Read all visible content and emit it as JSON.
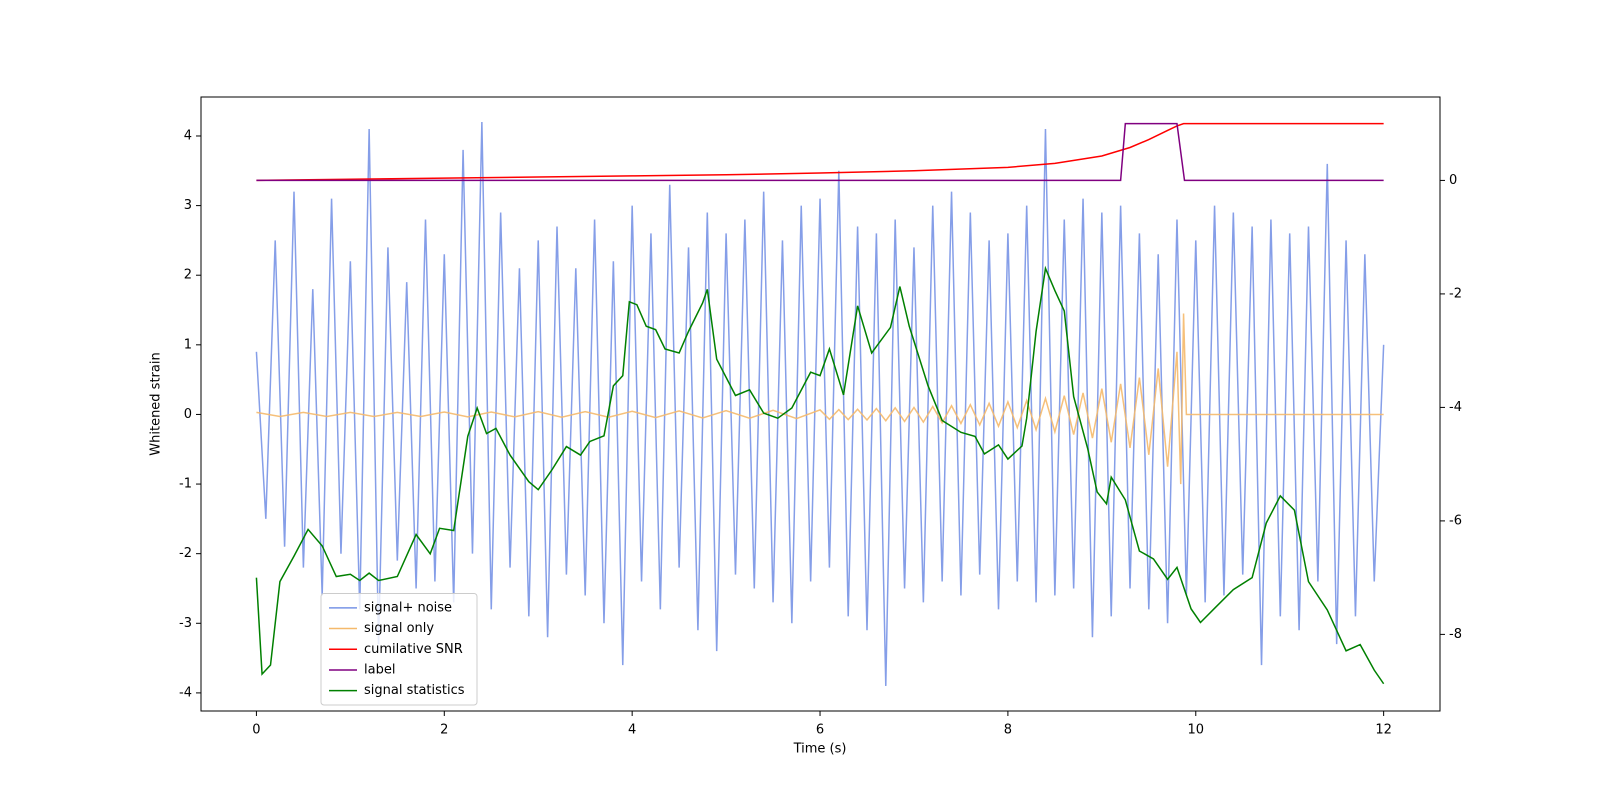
{
  "chart_data": {
    "type": "line",
    "xlabel": "Time (s)",
    "ylabel": "Whitened strain",
    "xlim": [
      -0.59,
      12.6
    ],
    "ylim": [
      -4.26,
      4.56
    ],
    "y2lim": [
      -9.35,
      1.47
    ],
    "xticks": [
      0,
      2,
      4,
      6,
      8,
      10,
      12
    ],
    "yticks": [
      -4,
      -3,
      -2,
      -1,
      0,
      1,
      2,
      3,
      4
    ],
    "y2ticks": [
      -8,
      -6,
      -4,
      -2,
      0
    ],
    "legend": "lower left",
    "series": [
      {
        "name": "signal+ noise",
        "color": "#7894e6",
        "axis": "y",
        "x": [
          0,
          0.1,
          0.2,
          0.3,
          0.4,
          0.5,
          0.6,
          0.7,
          0.8,
          0.9,
          1,
          1.1,
          1.2,
          1.3,
          1.4,
          1.5,
          1.6,
          1.7,
          1.8,
          1.9,
          2,
          2.1,
          2.2,
          2.3,
          2.4,
          2.5,
          2.6,
          2.7,
          2.8,
          2.9,
          3,
          3.1,
          3.2,
          3.3,
          3.4,
          3.5,
          3.6,
          3.7,
          3.8,
          3.9,
          4,
          4.1,
          4.2,
          4.3,
          4.4,
          4.5,
          4.6,
          4.7,
          4.8,
          4.9,
          5,
          5.1,
          5.2,
          5.3,
          5.4,
          5.5,
          5.6,
          5.7,
          5.8,
          5.9,
          6,
          6.1,
          6.2,
          6.3,
          6.4,
          6.5,
          6.6,
          6.7,
          6.8,
          6.9,
          7,
          7.1,
          7.2,
          7.3,
          7.4,
          7.5,
          7.6,
          7.7,
          7.8,
          7.9,
          8,
          8.1,
          8.2,
          8.3,
          8.4,
          8.5,
          8.6,
          8.7,
          8.8,
          8.9,
          9,
          9.1,
          9.2,
          9.3,
          9.4,
          9.5,
          9.6,
          9.7,
          9.8,
          9.9,
          10,
          10.1,
          10.2,
          10.3,
          10.4,
          10.5,
          10.6,
          10.7,
          10.8,
          10.9,
          11,
          11.1,
          11.2,
          11.3,
          11.4,
          11.5,
          11.6,
          11.7,
          11.8,
          11.9,
          12
        ],
        "values": [
          0.9,
          -1.5,
          2.5,
          -1.9,
          3.2,
          -2.2,
          1.8,
          -2.6,
          3.1,
          -2.0,
          2.2,
          -2.8,
          4.1,
          -3.3,
          2.4,
          -2.1,
          1.9,
          -2.5,
          2.8,
          -2.4,
          2.3,
          -2.7,
          3.8,
          -2.0,
          4.2,
          -2.8,
          2.9,
          -2.2,
          2.1,
          -2.9,
          2.5,
          -3.2,
          2.7,
          -2.3,
          2.1,
          -2.6,
          2.8,
          -3.0,
          2.2,
          -3.6,
          3.0,
          -2.4,
          2.6,
          -2.8,
          3.3,
          -2.2,
          2.4,
          -3.1,
          2.9,
          -3.4,
          2.6,
          -2.3,
          2.8,
          -2.5,
          3.2,
          -2.7,
          2.5,
          -3.0,
          3.0,
          -2.4,
          3.1,
          -2.2,
          3.5,
          -2.9,
          2.7,
          -3.1,
          2.6,
          -3.9,
          2.8,
          -2.5,
          2.4,
          -2.7,
          3.0,
          -2.4,
          3.2,
          -2.6,
          2.9,
          -2.3,
          2.5,
          -2.8,
          2.6,
          -2.4,
          3.0,
          -2.7,
          4.1,
          -2.6,
          2.8,
          -2.5,
          3.1,
          -3.2,
          2.9,
          -2.9,
          3.0,
          -2.5,
          2.6,
          -2.8,
          2.3,
          -3.0,
          2.8,
          -2.6,
          2.5,
          -2.7,
          3.0,
          -2.6,
          2.9,
          -2.3,
          2.7,
          -3.6,
          2.8,
          -2.9,
          2.6,
          -3.1,
          2.7,
          -2.4,
          3.6,
          -3.3,
          2.5,
          -2.9,
          2.3,
          -2.4,
          1.0
        ]
      },
      {
        "name": "signal only",
        "color": "#f5b96b",
        "axis": "y",
        "x": [
          0,
          0.25,
          0.5,
          0.75,
          1,
          1.25,
          1.5,
          1.75,
          2,
          2.25,
          2.5,
          2.75,
          3,
          3.25,
          3.5,
          3.75,
          4,
          4.25,
          4.5,
          4.75,
          5,
          5.25,
          5.5,
          5.75,
          6,
          6.1,
          6.2,
          6.3,
          6.4,
          6.5,
          6.6,
          6.7,
          6.8,
          6.9,
          7,
          7.1,
          7.2,
          7.3,
          7.4,
          7.5,
          7.6,
          7.7,
          7.8,
          7.9,
          8,
          8.1,
          8.2,
          8.3,
          8.4,
          8.5,
          8.6,
          8.7,
          8.8,
          8.9,
          9,
          9.1,
          9.2,
          9.3,
          9.4,
          9.5,
          9.6,
          9.7,
          9.8,
          9.84,
          9.87,
          9.9,
          12
        ],
        "values": [
          0.03,
          -0.03,
          0.03,
          -0.03,
          0.03,
          -0.03,
          0.03,
          -0.03,
          0.035,
          -0.035,
          0.035,
          -0.035,
          0.04,
          -0.04,
          0.04,
          -0.04,
          0.045,
          -0.045,
          0.05,
          -0.05,
          0.055,
          -0.055,
          0.06,
          -0.06,
          0.065,
          -0.07,
          0.07,
          -0.075,
          0.075,
          -0.08,
          0.085,
          -0.09,
          0.095,
          -0.1,
          0.1,
          -0.11,
          0.115,
          -0.12,
          0.125,
          -0.13,
          0.14,
          -0.15,
          0.16,
          -0.17,
          0.18,
          -0.19,
          0.2,
          -0.22,
          0.23,
          -0.25,
          0.27,
          -0.29,
          0.31,
          -0.34,
          0.37,
          -0.4,
          0.44,
          -0.48,
          0.53,
          -0.58,
          0.66,
          -0.75,
          0.9,
          -1.0,
          1.45,
          0,
          0
        ]
      },
      {
        "name": "cumilative SNR",
        "color": "#ff0000",
        "axis": "y2",
        "x": [
          0,
          1,
          2,
          3,
          4,
          5,
          6,
          7,
          8,
          8.5,
          9,
          9.3,
          9.5,
          9.7,
          9.8,
          9.87,
          10,
          12
        ],
        "values": [
          0,
          0.02,
          0.04,
          0.06,
          0.08,
          0.1,
          0.13,
          0.17,
          0.23,
          0.3,
          0.43,
          0.58,
          0.72,
          0.88,
          0.96,
          1,
          1,
          1
        ]
      },
      {
        "name": "label",
        "color": "#800080",
        "axis": "y2",
        "x": [
          0,
          9.2,
          9.25,
          9.8,
          9.88,
          12
        ],
        "values": [
          0,
          0,
          1,
          1,
          0,
          0
        ]
      },
      {
        "name": "signal statistics",
        "color": "#008000",
        "axis": "y2",
        "x": [
          0,
          0.06,
          0.15,
          0.25,
          0.4,
          0.55,
          0.7,
          0.85,
          1.0,
          1.1,
          1.2,
          1.3,
          1.5,
          1.7,
          1.85,
          1.95,
          2.1,
          2.25,
          2.35,
          2.45,
          2.55,
          2.7,
          2.9,
          3.0,
          3.15,
          3.3,
          3.45,
          3.55,
          3.7,
          3.8,
          3.9,
          3.97,
          4.05,
          4.15,
          4.25,
          4.35,
          4.5,
          4.6,
          4.75,
          4.8,
          4.9,
          5.1,
          5.25,
          5.4,
          5.55,
          5.7,
          5.9,
          6.0,
          6.1,
          6.25,
          6.4,
          6.55,
          6.75,
          6.85,
          6.95,
          7.15,
          7.3,
          7.5,
          7.65,
          7.75,
          7.9,
          8.0,
          8.15,
          8.2,
          8.3,
          8.4,
          8.5,
          8.6,
          8.7,
          8.85,
          8.95,
          9.05,
          9.1,
          9.25,
          9.4,
          9.55,
          9.7,
          9.8,
          9.95,
          10.05,
          10.2,
          10.4,
          10.6,
          10.75,
          10.9,
          11.05,
          11.2,
          11.4,
          11.6,
          11.75,
          11.9,
          12.0
        ],
        "values": [
          -7.0,
          -8.7,
          -8.54,
          -7.07,
          -6.62,
          -6.15,
          -6.44,
          -6.98,
          -6.94,
          -7.05,
          -6.92,
          -7.05,
          -6.98,
          -6.24,
          -6.58,
          -6.13,
          -6.17,
          -4.51,
          -4.01,
          -4.46,
          -4.37,
          -4.84,
          -5.31,
          -5.45,
          -5.09,
          -4.69,
          -4.84,
          -4.6,
          -4.5,
          -3.62,
          -3.44,
          -2.14,
          -2.19,
          -2.57,
          -2.63,
          -2.97,
          -3.04,
          -2.66,
          -2.16,
          -1.92,
          -3.15,
          -3.79,
          -3.69,
          -4.1,
          -4.19,
          -4.01,
          -3.38,
          -3.44,
          -2.97,
          -3.78,
          -2.21,
          -3.04,
          -2.59,
          -1.87,
          -2.57,
          -3.62,
          -4.23,
          -4.44,
          -4.51,
          -4.82,
          -4.66,
          -4.91,
          -4.68,
          -4.19,
          -2.66,
          -1.55,
          -1.94,
          -2.3,
          -3.81,
          -4.73,
          -5.49,
          -5.7,
          -5.23,
          -5.63,
          -6.53,
          -6.67,
          -7.03,
          -6.82,
          -7.55,
          -7.79,
          -7.54,
          -7.21,
          -7.0,
          -6.04,
          -5.56,
          -5.81,
          -7.07,
          -7.57,
          -8.29,
          -8.18,
          -8.63,
          -8.87
        ]
      }
    ]
  }
}
